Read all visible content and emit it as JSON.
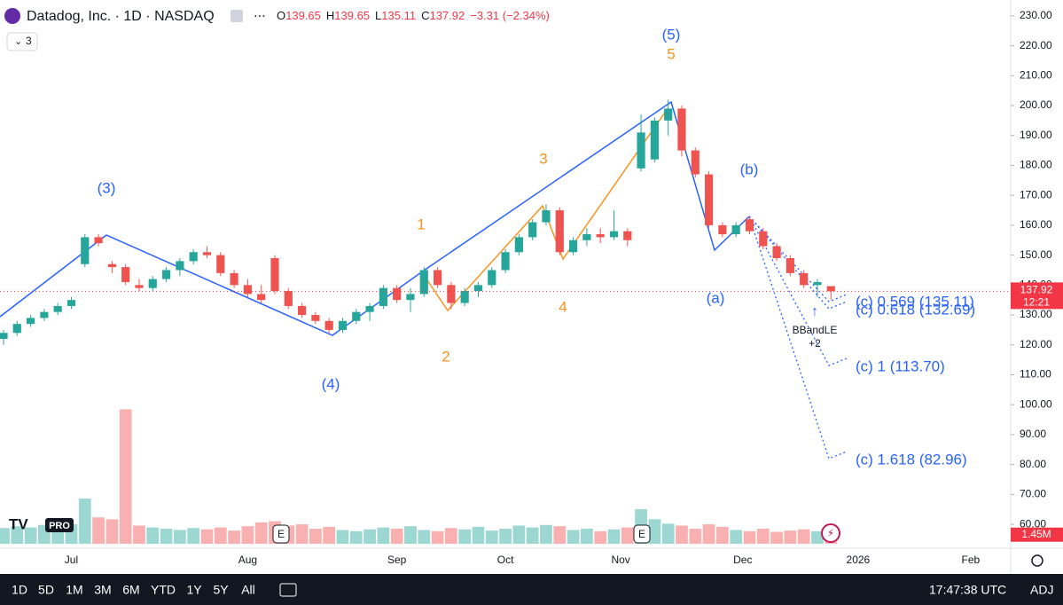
{
  "chart_data": {
    "type": "candlestick",
    "symbol": "Datadog, Inc. · 1D · NASDAQ",
    "ohlc_labels": [
      "O",
      "H",
      "L",
      "C"
    ],
    "change_text": "−3.31 (−2.34%)",
    "indicator_count": "3",
    "logo_text": "PRO",
    "up_color": "#26a69a",
    "down_color": "#ef5350",
    "open": [
      122,
      124,
      127,
      129,
      131,
      133,
      147,
      156,
      147,
      146,
      140,
      139,
      142,
      145,
      148,
      151,
      150,
      144,
      140,
      137,
      149,
      138,
      133,
      130,
      128,
      125,
      128,
      131,
      133,
      139,
      135,
      137,
      145,
      140,
      134,
      138,
      140,
      145,
      151,
      156,
      161,
      165,
      151,
      155,
      157,
      156,
      158,
      179,
      182,
      195,
      199,
      185,
      177,
      160,
      157,
      162,
      158,
      153,
      149,
      144,
      140,
      139.65
    ],
    "high": [
      125,
      128,
      130,
      132,
      134,
      136,
      157,
      157,
      148,
      147,
      142,
      143,
      146,
      149,
      152,
      153,
      151,
      145,
      142,
      140,
      150,
      139,
      134,
      131,
      129,
      129,
      132,
      134,
      140,
      140,
      139,
      146,
      146,
      141,
      139,
      141,
      146,
      152,
      157,
      162,
      167,
      166,
      156,
      159,
      159,
      165,
      159,
      197,
      196,
      202,
      200,
      186,
      178,
      161,
      161,
      163,
      159,
      154,
      150,
      145,
      142,
      139.65
    ],
    "low": [
      120,
      123,
      126,
      128,
      130,
      132,
      146,
      153,
      144,
      140,
      138,
      138,
      141,
      143,
      147,
      149,
      143,
      139,
      136,
      134,
      137,
      132,
      129,
      127,
      124,
      124,
      127,
      128,
      132,
      134,
      131,
      136,
      139,
      132,
      133,
      136,
      139,
      144,
      150,
      155,
      160,
      150,
      150,
      153,
      154,
      155,
      153,
      178,
      181,
      190,
      183,
      176,
      159,
      156,
      156,
      157,
      152,
      148,
      143,
      139,
      136,
      135.11
    ],
    "close": [
      124,
      127,
      129,
      131,
      133,
      135,
      156,
      154,
      146,
      141,
      139,
      142,
      145,
      148,
      151,
      150,
      144,
      140,
      137,
      135,
      138,
      133,
      130,
      128,
      125,
      128,
      131,
      133,
      139,
      135,
      137,
      145,
      140,
      134,
      138,
      140,
      145,
      151,
      156,
      161,
      165,
      151,
      155,
      157,
      156,
      158,
      155,
      191,
      195,
      199,
      185,
      177,
      160,
      157,
      160,
      158,
      153,
      149,
      144,
      140,
      141,
      137.92
    ],
    "volume": [
      2.5,
      2.8,
      2.6,
      3.0,
      2.7,
      3.1,
      7.2,
      4.2,
      3.9,
      21.4,
      2.9,
      2.6,
      2.4,
      2.2,
      2.5,
      2.3,
      2.6,
      2.1,
      2.8,
      3.4,
      3.6,
      2.9,
      3.1,
      2.4,
      2.7,
      2.2,
      2.0,
      2.3,
      2.6,
      2.4,
      2.8,
      2.2,
      2.0,
      2.5,
      2.3,
      2.7,
      2.1,
      2.4,
      2.9,
      2.6,
      3.0,
      2.8,
      2.2,
      2.4,
      2.0,
      2.3,
      2.6,
      5.5,
      3.9,
      3.2,
      2.9,
      2.4,
      3.1,
      2.7,
      2.2,
      2.0,
      2.4,
      1.9,
      2.1,
      2.3,
      2.0,
      1.45
    ],
    "last_volume_label": "1.45M",
    "countdown": "12:21",
    "xlim": [
      -0.26,
      74.25
    ],
    "ylim": [
      53.5,
      235.3
    ],
    "volume_ylim": [
      0,
      24
    ],
    "yticks": [
      {
        "value": 230,
        "label": "230.00"
      },
      {
        "value": 220,
        "label": "220.00"
      },
      {
        "value": 210,
        "label": "210.00"
      },
      {
        "value": 200,
        "label": "200.00"
      },
      {
        "value": 190,
        "label": "190.00"
      },
      {
        "value": 180,
        "label": "180.00"
      },
      {
        "value": 170,
        "label": "170.00"
      },
      {
        "value": 160,
        "label": "160.00"
      },
      {
        "value": 150,
        "label": "150.00"
      },
      {
        "value": 140,
        "label": "140.00"
      },
      {
        "value": 130,
        "label": "130.00"
      },
      {
        "value": 120,
        "label": "120.00"
      },
      {
        "value": 110,
        "label": "110.00"
      },
      {
        "value": 100,
        "label": "100.00"
      },
      {
        "value": 90,
        "label": "90.00"
      },
      {
        "value": 80,
        "label": "80.00"
      },
      {
        "value": 70,
        "label": "70.00"
      },
      {
        "value": 60,
        "label": "60.00"
      }
    ],
    "xticks": [
      {
        "value": 5,
        "label": "Jul"
      },
      {
        "value": 18,
        "label": "Aug"
      },
      {
        "value": 29,
        "label": "Sep"
      },
      {
        "value": 37,
        "label": "Oct"
      },
      {
        "value": 45.5,
        "label": "Nov"
      },
      {
        "value": 54.5,
        "label": "Dec"
      },
      {
        "value": 63,
        "label": "2026"
      },
      {
        "value": 71.3,
        "label": "Feb"
      }
    ],
    "wave_labels": [
      {
        "text": "(5)",
        "color": "#2962ff"
      },
      {
        "text": "5",
        "color": "#f7941d"
      },
      {
        "text": "(3)",
        "color": "#2962ff"
      },
      {
        "text": "3",
        "color": "#f7941d"
      },
      {
        "text": "1",
        "color": "#f7941d"
      },
      {
        "text": "2",
        "color": "#f7941d"
      },
      {
        "text": "4",
        "color": "#f7941d"
      },
      {
        "text": "(4)",
        "color": "#2962ff"
      },
      {
        "text": "(b)",
        "color": "#2962ff"
      },
      {
        "text": "(a)",
        "color": "#2962ff"
      }
    ],
    "fib_labels": [
      "(c) 0.569 (135.11)",
      "(c) 0.618 (132.69)",
      "(c) 1 (113.70)",
      "(c) 1.618 (82.96)"
    ],
    "signal": {
      "text": "BBandLE",
      "count": "+2"
    },
    "earnings_marker": "E"
  },
  "toolbar": {
    "ranges": [
      "1D",
      "5D",
      "1M",
      "3M",
      "6M",
      "YTD",
      "1Y",
      "5Y",
      "All"
    ],
    "time": "17:47:38 UTC",
    "adj": "ADJ"
  }
}
